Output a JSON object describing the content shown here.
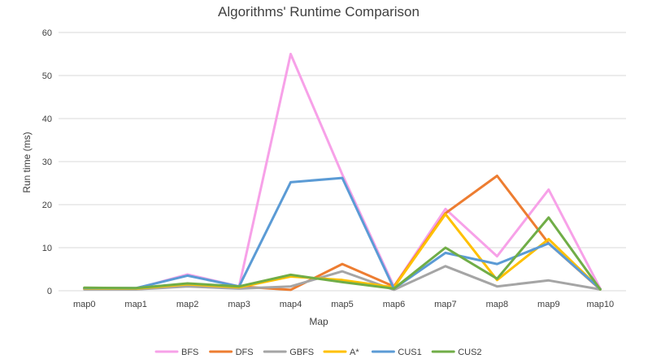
{
  "chart_data": {
    "type": "line",
    "title": "Algorithms' Runtime Comparison",
    "xlabel": "Map",
    "ylabel": "Run time (ms)",
    "ylim": [
      0,
      60
    ],
    "yticks": [
      0,
      10,
      20,
      30,
      40,
      50,
      60
    ],
    "grid": true,
    "legend": "bottom",
    "categories": [
      "map0",
      "map1",
      "map2",
      "map3",
      "map4",
      "map5",
      "map6",
      "map7",
      "map8",
      "map9",
      "map10"
    ],
    "series": [
      {
        "name": "BFS",
        "color": "#f7a1e8",
        "values": [
          0.5,
          0.5,
          3.8,
          1.0,
          55.0,
          27.0,
          1.0,
          19.0,
          8.0,
          23.5,
          0.5
        ]
      },
      {
        "name": "DFS",
        "color": "#ed7d31",
        "values": [
          0.5,
          0.4,
          1.5,
          1.0,
          0.2,
          6.2,
          1.0,
          18.0,
          26.7,
          11.0,
          0.3
        ]
      },
      {
        "name": "GBFS",
        "color": "#a5a5a5",
        "values": [
          0.3,
          0.3,
          1.0,
          0.5,
          1.0,
          4.5,
          0.2,
          5.7,
          1.0,
          2.4,
          0.3
        ]
      },
      {
        "name": "A*",
        "color": "#ffc000",
        "values": [
          0.5,
          0.5,
          1.5,
          0.8,
          3.3,
          2.5,
          0.8,
          17.8,
          2.5,
          12.0,
          0.4
        ]
      },
      {
        "name": "CUS1",
        "color": "#5b9bd5",
        "values": [
          0.6,
          0.6,
          3.5,
          1.0,
          25.2,
          26.2,
          0.5,
          8.8,
          6.2,
          11.0,
          0.4
        ]
      },
      {
        "name": "CUS2",
        "color": "#70ad47",
        "values": [
          0.7,
          0.6,
          1.7,
          1.0,
          3.7,
          2.0,
          0.5,
          10.0,
          2.8,
          17.0,
          0.3
        ]
      }
    ]
  }
}
